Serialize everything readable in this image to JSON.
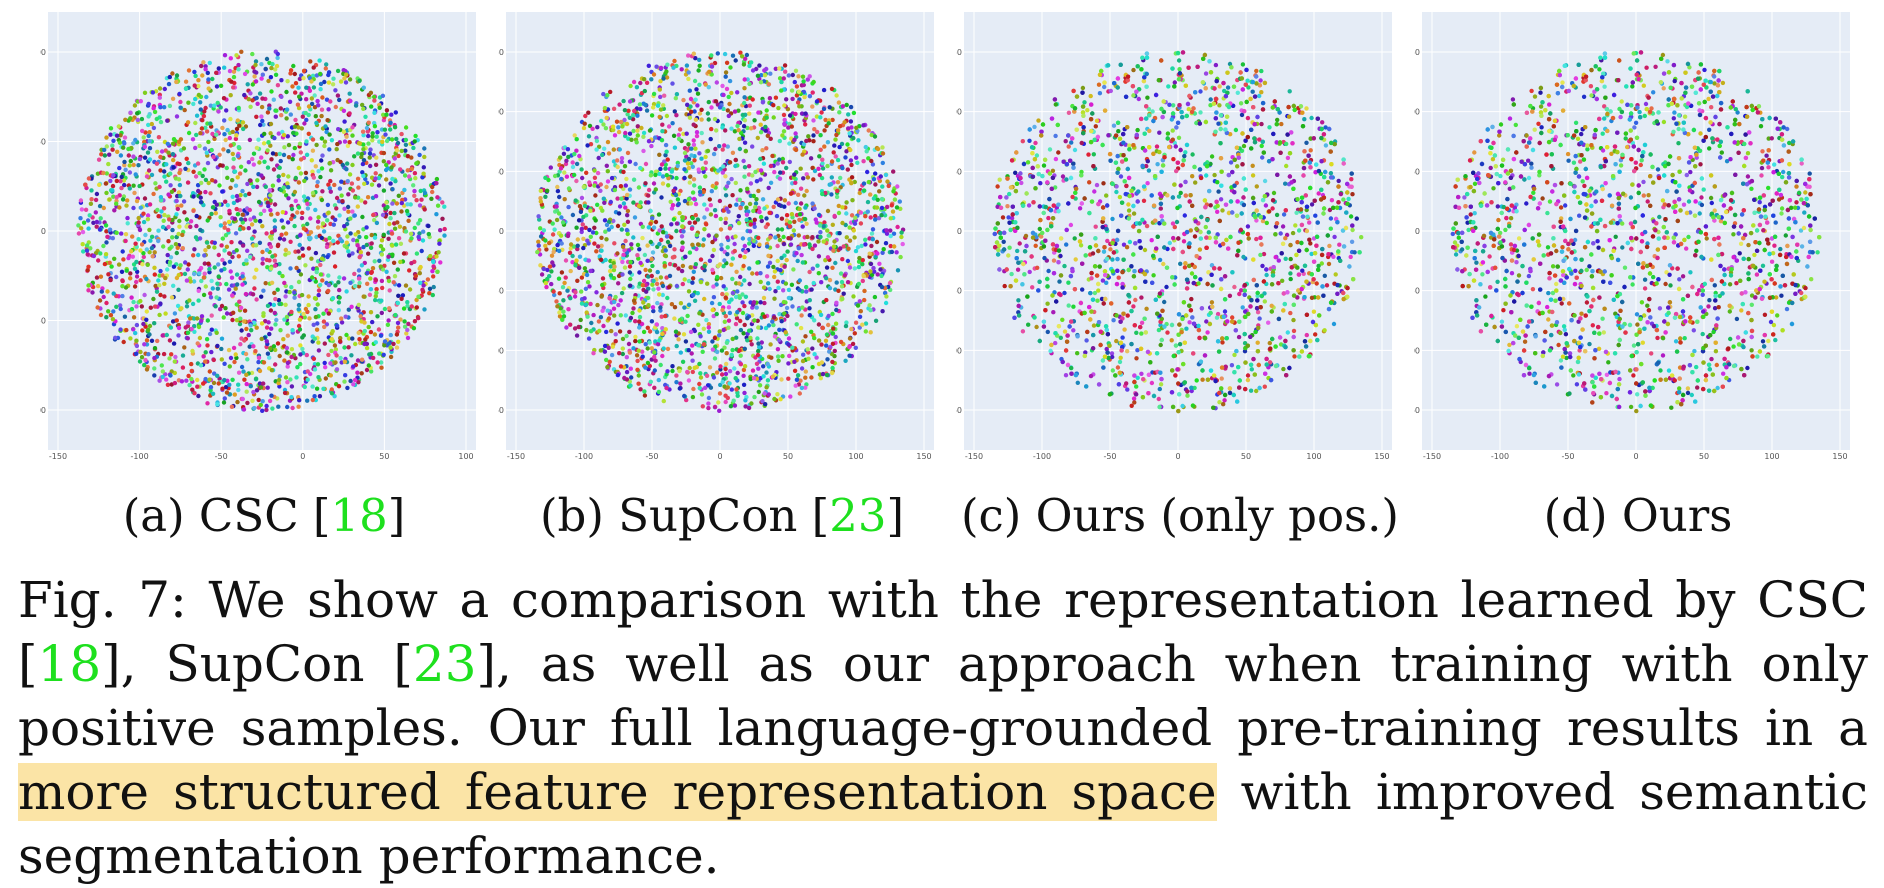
{
  "panels": [
    {
      "id": "a",
      "label": "(a) CSC [",
      "cite": "18",
      "close": "]",
      "xticks": [
        "-150",
        "-100",
        "-50",
        "0",
        "50",
        "100"
      ],
      "yticks": [
        "100",
        "50",
        "0",
        "-50",
        "-100"
      ]
    },
    {
      "id": "b",
      "label": "(b) SupCon [",
      "cite": "23",
      "close": "]",
      "xticks": [
        "-150",
        "-100",
        "-50",
        "0",
        "50",
        "100",
        "150"
      ],
      "yticks": [
        "150",
        "100",
        "50",
        "0",
        "-50",
        "-100",
        "-150"
      ]
    },
    {
      "id": "c",
      "label": "(c) Ours (only pos.)",
      "cite": "",
      "close": "",
      "xticks": [
        "-150",
        "-100",
        "-50",
        "0",
        "50",
        "100",
        "150"
      ],
      "yticks": [
        "150",
        "100",
        "50",
        "0",
        "-50",
        "-100",
        "-150"
      ]
    },
    {
      "id": "d",
      "label": "(d) Ours",
      "cite": "",
      "close": "",
      "xticks": [
        "-150",
        "-100",
        "-50",
        "0",
        "50",
        "100",
        "150"
      ],
      "yticks": [
        "150",
        "100",
        "50",
        "0",
        "-50",
        "-100",
        "-150"
      ]
    }
  ],
  "caption": {
    "prefix": "Fig. 7: We show a comparison with the representation learned by CSC [",
    "cite1": "18",
    "mid1": "], SupCon [",
    "cite2": "23",
    "mid2": "], as well as our approach when training with only positive samples. Our full language-grounded pre-training results in a ",
    "highlight": "more structured feature representation space",
    "suffix": " with improved semantic segmentation performance."
  },
  "colors": {
    "plot_bg": "#e5ecf6",
    "grid": "#ffffff",
    "citation": "#1ee01e",
    "highlight": "#fbe4a6"
  }
}
